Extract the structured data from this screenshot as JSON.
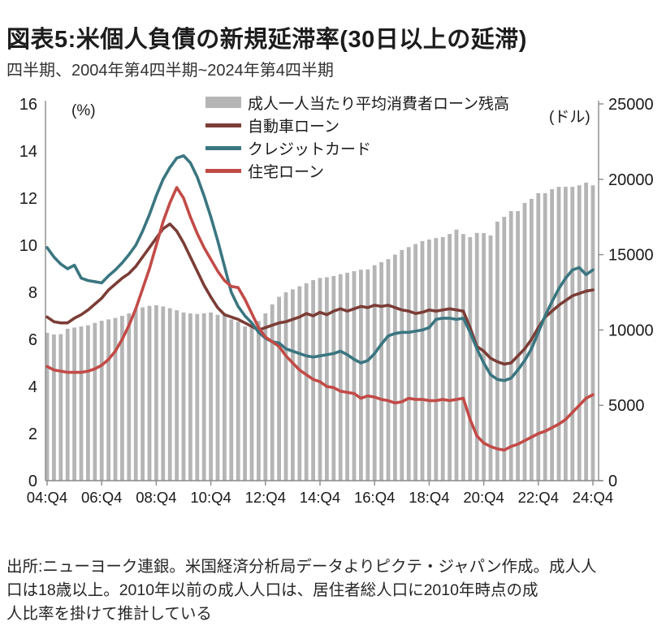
{
  "header": {
    "title": "図表5:米個人負債の新規延滞率(30日以上の延滞)",
    "subtitle": "四半期、2004年第4四半期~2024年第4四半期"
  },
  "footer": {
    "source": "出所:ニューヨーク連銀。米国経済分析局データよりピクテ・ジャパン作成。成人人\n口は18歳以上。2010年以前の成人人口は、居住者総人口に2010年時点の成\n人比率を掛けて推計している"
  },
  "colors": {
    "bars": "#b5b5b5",
    "auto_loan": "#7b3d36",
    "credit_card": "#3a7680",
    "mortgage": "#c24b47",
    "axis": "#8a8a8a",
    "text": "#1a1a1a"
  },
  "chart_data": {
    "type": "bar+line combo",
    "x_unit": "quarter",
    "x_start": "2004:Q4",
    "x_end": "2024:Q4",
    "n_points": 81,
    "x_tick_labels": [
      "04:Q4",
      "06:Q4",
      "08:Q4",
      "10:Q4",
      "12:Q4",
      "14:Q4",
      "16:Q4",
      "18:Q4",
      "20:Q4",
      "22:Q4",
      "24:Q4"
    ],
    "x_ticks_every_n_quarters": 8,
    "y_left": {
      "unit": "(%)",
      "min": 0,
      "max": 16,
      "ticks": [
        0,
        2,
        4,
        6,
        8,
        10,
        12,
        14,
        16
      ]
    },
    "y_right": {
      "unit": "(ドル)",
      "min": 0,
      "max": 25000,
      "ticks": [
        0,
        5000,
        10000,
        15000,
        20000,
        25000
      ]
    },
    "grid": false,
    "legend_position": "top-inside",
    "series": [
      {
        "name": "成人一人当たり平均消費者ローン残高",
        "type": "bar",
        "axis": "right",
        "color": "#b5b5b5",
        "values": [
          9810,
          9700,
          9720,
          10080,
          10160,
          10230,
          10310,
          10470,
          10610,
          10700,
          10800,
          10940,
          11100,
          11400,
          11500,
          11600,
          11640,
          11560,
          11440,
          11310,
          11160,
          11100,
          11060,
          11110,
          11160,
          11000,
          10980,
          10700,
          10550,
          10230,
          10300,
          10600,
          11100,
          11700,
          12200,
          12500,
          12700,
          12900,
          13100,
          13310,
          13450,
          13500,
          13580,
          13700,
          13800,
          13900,
          14000,
          14020,
          14300,
          14500,
          14700,
          15000,
          15310,
          15500,
          15700,
          15900,
          16000,
          16100,
          16160,
          16370,
          16660,
          16370,
          16160,
          16440,
          16430,
          16270,
          17190,
          17510,
          17890,
          17890,
          18430,
          18700,
          19080,
          19080,
          19340,
          19500,
          19500,
          19500,
          19600,
          19780,
          19600
        ]
      },
      {
        "name": "自動車ローン",
        "type": "line",
        "axis": "left",
        "color": "#7b3d36",
        "values": [
          6.95,
          6.75,
          6.7,
          6.7,
          6.9,
          7.05,
          7.25,
          7.5,
          7.75,
          8.1,
          8.35,
          8.6,
          8.8,
          9.1,
          9.5,
          9.9,
          10.3,
          10.7,
          10.9,
          10.6,
          10.1,
          9.5,
          8.9,
          8.3,
          7.8,
          7.35,
          7.05,
          6.95,
          6.85,
          6.7,
          6.55,
          6.4,
          6.5,
          6.6,
          6.7,
          6.75,
          6.85,
          6.95,
          7.1,
          7.0,
          7.15,
          7.05,
          7.2,
          7.3,
          7.2,
          7.3,
          7.4,
          7.35,
          7.45,
          7.4,
          7.45,
          7.35,
          7.25,
          7.2,
          7.1,
          7.15,
          7.25,
          7.2,
          7.25,
          7.3,
          7.25,
          7.2,
          6.5,
          5.7,
          5.5,
          5.2,
          5.05,
          4.95,
          5.0,
          5.3,
          5.6,
          6.0,
          6.5,
          6.95,
          7.2,
          7.45,
          7.65,
          7.85,
          7.95,
          8.05,
          8.1
        ]
      },
      {
        "name": "クレジットカード",
        "type": "line",
        "axis": "left",
        "color": "#3a7680",
        "values": [
          9.9,
          9.5,
          9.2,
          9.0,
          9.15,
          8.6,
          8.5,
          8.45,
          8.4,
          8.7,
          8.95,
          9.25,
          9.6,
          10.0,
          10.6,
          11.3,
          12.1,
          12.8,
          13.3,
          13.7,
          13.8,
          13.5,
          12.9,
          12.1,
          11.2,
          10.2,
          9.1,
          8.0,
          7.4,
          7.0,
          6.7,
          6.3,
          6.05,
          5.9,
          5.85,
          5.6,
          5.5,
          5.4,
          5.3,
          5.25,
          5.3,
          5.35,
          5.4,
          5.5,
          5.35,
          5.15,
          5.0,
          5.1,
          5.4,
          5.8,
          6.15,
          6.25,
          6.3,
          6.3,
          6.35,
          6.4,
          6.5,
          6.85,
          6.9,
          6.9,
          6.85,
          6.9,
          6.3,
          5.6,
          5.0,
          4.5,
          4.3,
          4.25,
          4.35,
          4.7,
          5.1,
          5.6,
          6.3,
          7.0,
          7.6,
          8.15,
          8.6,
          8.95,
          9.05,
          8.75,
          8.95
        ]
      },
      {
        "name": "住宅ローン",
        "type": "line",
        "axis": "left",
        "color": "#c24b47",
        "values": [
          4.85,
          4.7,
          4.65,
          4.6,
          4.6,
          4.6,
          4.65,
          4.75,
          4.9,
          5.15,
          5.5,
          6.0,
          6.6,
          7.3,
          8.15,
          9.0,
          10.0,
          11.0,
          11.8,
          12.45,
          12.0,
          11.2,
          10.5,
          9.9,
          9.4,
          8.9,
          8.5,
          8.25,
          8.2,
          7.7,
          7.1,
          6.5,
          6.1,
          5.9,
          5.7,
          5.3,
          5.0,
          4.7,
          4.5,
          4.3,
          4.2,
          4.0,
          3.95,
          3.8,
          3.75,
          3.7,
          3.5,
          3.6,
          3.55,
          3.45,
          3.4,
          3.3,
          3.35,
          3.5,
          3.45,
          3.45,
          3.4,
          3.4,
          3.45,
          3.4,
          3.45,
          3.5,
          2.6,
          1.9,
          1.6,
          1.45,
          1.35,
          1.3,
          1.45,
          1.55,
          1.7,
          1.85,
          2.0,
          2.1,
          2.25,
          2.4,
          2.6,
          2.9,
          3.2,
          3.5,
          3.65
        ]
      }
    ]
  }
}
